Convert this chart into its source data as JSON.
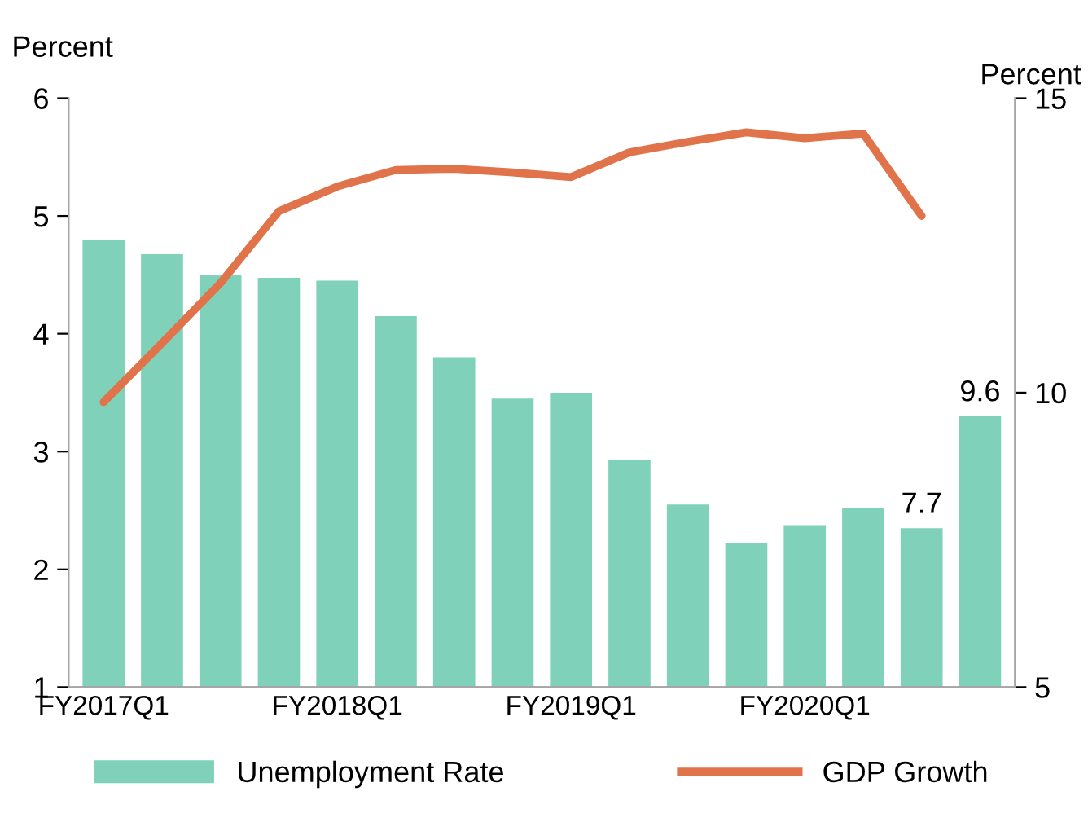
{
  "chart_data": {
    "type": "bar",
    "categories": [
      "FY2017Q1",
      null,
      null,
      null,
      "FY2018Q1",
      null,
      null,
      null,
      "FY2019Q1",
      null,
      null,
      null,
      "FY2020Q1",
      null,
      null,
      null
    ],
    "series": [
      {
        "name": "Unemployment Rate",
        "axis": "y2",
        "color": "#7fd1b9",
        "values": [
          12.6,
          12.35,
          12.0,
          11.95,
          11.9,
          11.3,
          10.6,
          9.9,
          10.0,
          8.85,
          8.1,
          7.45,
          7.75,
          8.05,
          7.7,
          9.6
        ],
        "value_labels": [
          null,
          null,
          null,
          null,
          null,
          null,
          null,
          null,
          null,
          null,
          null,
          null,
          null,
          null,
          "7.7",
          "9.6"
        ]
      },
      {
        "name": "GDP Growth",
        "type": "line",
        "color": "#e0734a",
        "values": [
          3.42,
          3.92,
          4.43,
          5.04,
          5.25,
          5.39,
          5.4,
          5.37,
          5.33,
          5.54,
          5.63,
          5.71,
          5.66,
          5.7,
          5.0,
          null
        ]
      }
    ],
    "ylabel": "Percent",
    "y2label": "Percent",
    "ylim": [
      1,
      6
    ],
    "yticks": [
      1,
      2,
      3,
      4,
      5,
      6
    ],
    "y2lim": [
      5,
      15
    ],
    "y2ticks": [
      5,
      10,
      15
    ],
    "legend": "bottom",
    "grid": false
  }
}
